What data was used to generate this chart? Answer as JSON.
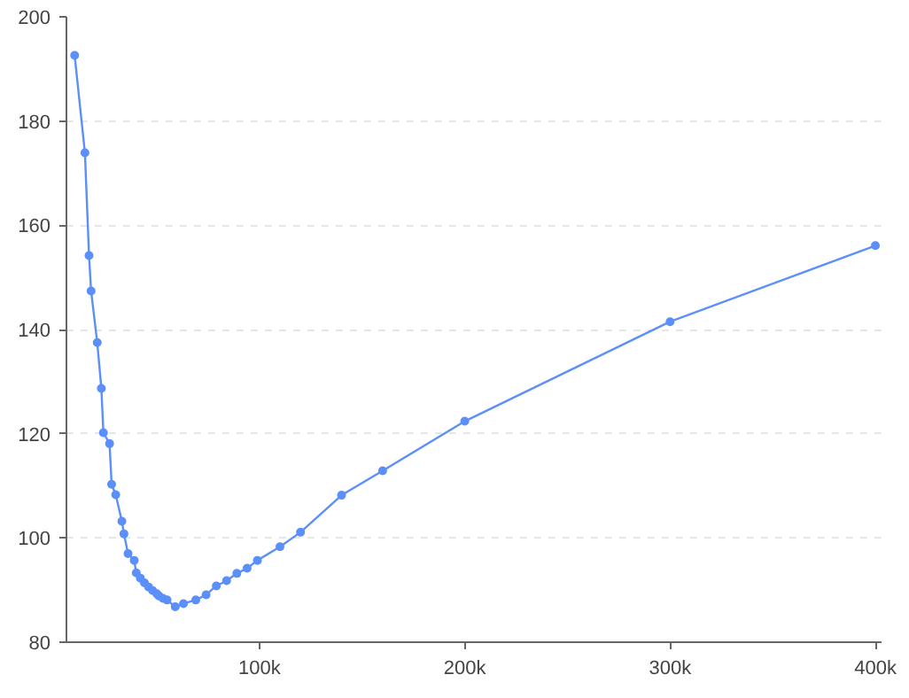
{
  "chart_data": {
    "type": "line",
    "x": [
      10000,
      15000,
      17000,
      18000,
      21000,
      23000,
      24000,
      27000,
      28000,
      30000,
      33000,
      34000,
      36000,
      39000,
      40000,
      42000,
      44000,
      46000,
      48000,
      50000,
      51000,
      53000,
      55000,
      59000,
      63000,
      69000,
      74000,
      79000,
      84000,
      89000,
      94000,
      99000,
      110000,
      120000,
      140000,
      160000,
      200000,
      300000,
      400000
    ],
    "series": [
      {
        "color": "#5b8ff9",
        "values": [
          192.6,
          173.9,
          154.2,
          147.4,
          137.5,
          128.7,
          120.2,
          118.1,
          110.3,
          108.3,
          103.2,
          100.8,
          97.0,
          95.7,
          93.3,
          92.3,
          91.4,
          90.6,
          89.9,
          89.3,
          88.9,
          88.4,
          88.1,
          86.8,
          87.4,
          88.1,
          89.1,
          90.8,
          91.8,
          93.2,
          94.2,
          95.7,
          98.3,
          101.1,
          108.2,
          112.9,
          122.4,
          141.5,
          156.1
        ]
      }
    ],
    "xlim": [
      6000,
      403000
    ],
    "xticks": [
      {
        "value": 100000,
        "label": "100k"
      },
      {
        "value": 200000,
        "label": "200k"
      },
      {
        "value": 300000,
        "label": "300k"
      },
      {
        "value": 400000,
        "label": "400k"
      }
    ],
    "ylim": [
      80,
      200
    ],
    "yticks": [
      80,
      100,
      120,
      140,
      160,
      180,
      200
    ],
    "grid": "y",
    "marker": "circle",
    "line_style": "solid"
  }
}
